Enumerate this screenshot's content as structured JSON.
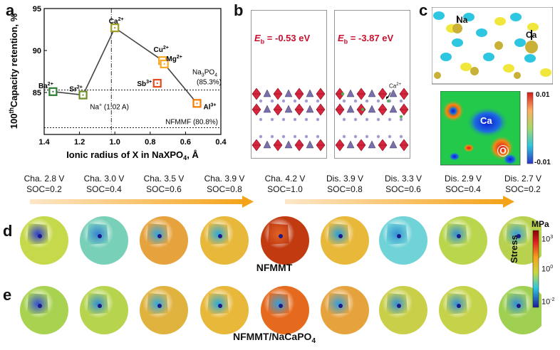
{
  "panels": {
    "a": "a",
    "b": "b",
    "c": "c",
    "d": "d",
    "e": "e"
  },
  "chart_data": {
    "type": "scatter",
    "title": "",
    "xlabel": "Ionic radius of X in NaXPO",
    "xlabel_sub": "4",
    "xlabel_tail": ", Å",
    "ylabel": "Capacity retention, %",
    "ylabel_prefix": "100",
    "ylabel_sup": "th",
    "xlim": [
      1.4,
      0.4
    ],
    "ylim": [
      80,
      95
    ],
    "xticks": [
      1.4,
      1.2,
      1.0,
      0.8,
      0.6,
      0.4
    ],
    "xtick_labels": [
      "1.4",
      "1.2",
      "1.0",
      "0.8",
      "0.6",
      "0.4"
    ],
    "yticks": [
      85,
      90,
      95
    ],
    "ytick_labels": [
      "85",
      "90",
      "95"
    ],
    "series": [
      {
        "name": "connected",
        "points": [
          {
            "ion": "Ba",
            "charge": "2+",
            "x": 1.35,
            "y": 85.1,
            "color": "#2e7d32"
          },
          {
            "ion": "Sr",
            "charge": "2+",
            "x": 1.18,
            "y": 84.7,
            "color": "#6b8e23"
          },
          {
            "ion": "Ca",
            "charge": "2+",
            "x": 1.0,
            "y": 92.7,
            "color": "#9e9d24"
          },
          {
            "ion": "Cu",
            "charge": "2+",
            "x": 0.73,
            "y": 88.8,
            "color": "#f9a825"
          },
          {
            "ion": "Mg",
            "charge": "2+",
            "x": 0.72,
            "y": 88.4,
            "color": "#f9a825"
          },
          {
            "ion": "Al",
            "charge": "3+",
            "x": 0.535,
            "y": 83.7,
            "color": "#f57c00"
          }
        ]
      },
      {
        "name": "isolated",
        "points": [
          {
            "ion": "Sb",
            "charge": "3+",
            "x": 0.76,
            "y": 86.1,
            "color": "#e64a19"
          }
        ]
      }
    ],
    "reference_lines": [
      {
        "label": "Na",
        "label_sup": "+",
        "label_tail": " (1.02 A)",
        "axis": "x",
        "value": 1.02
      },
      {
        "label": "Na",
        "label_sub1": "3",
        "label_mid": "PO",
        "label_sub2": "4",
        "label_line2": "(85.3%)",
        "axis": "y",
        "value": 85.3
      },
      {
        "label": "NFMMF (80.8%)",
        "axis": "y",
        "value": 80.8
      }
    ]
  },
  "panel_b": {
    "left": {
      "label_e": "E",
      "label_sub": "b",
      "label_val": " = -0.53 eV"
    },
    "right": {
      "label_e": "E",
      "label_sub": "b",
      "label_val": " = -3.87 eV",
      "annotation": "Ca",
      "annotation_sup": "2+"
    }
  },
  "panel_c": {
    "top_labels": [
      "Na",
      "Ca"
    ],
    "map_labels": [
      "Ca",
      "O"
    ],
    "colorbar_max": "0.01",
    "colorbar_min": "-0.01"
  },
  "states": [
    {
      "line1": "Cha. 2.8 V",
      "line2": "SOC=0.2"
    },
    {
      "line1": "Cha. 3.0 V",
      "line2": "SOC=0.4"
    },
    {
      "line1": "Cha. 3.5 V",
      "line2": "SOC=0.6"
    },
    {
      "line1": "Cha. 3.9 V",
      "line2": "SOC=0.8"
    },
    {
      "line1": "Cha. 4.2 V",
      "line2": "SOC=1.0"
    },
    {
      "line1": "Dis. 3.9 V",
      "line2": "SOC=0.8"
    },
    {
      "line1": "Dis. 3.3 V",
      "line2": "SOC=0.6"
    },
    {
      "line1": "Dis. 2.9 V",
      "line2": "SOC=0.4"
    },
    {
      "line1": "Dis. 2.7 V",
      "line2": "SOC=0.2"
    }
  ],
  "row_d": {
    "label": "NFMMT",
    "outer_colors": [
      "#c5d94a",
      "#78d0b8",
      "#e6a23c",
      "#e8b83a",
      "#c23a10",
      "#e8b83a",
      "#6fd3d8",
      "#b9d64d",
      "#b8d24f"
    ],
    "inner_colors": [
      "#2233cc",
      "#2a7ed0",
      "#2aa0d8",
      "#23a6d6",
      "#e05a18",
      "#1f9ad6",
      "#2a8fd0",
      "#2a8ad0",
      "#2a9ad8"
    ]
  },
  "row_e": {
    "label": "NFMMT/NaCaPO",
    "label_sub": "4",
    "outer_colors": [
      "#a8d24f",
      "#b6d44d",
      "#e0b23e",
      "#e8b83a",
      "#e66a1e",
      "#e6a23c",
      "#c9cf48",
      "#c5d34a",
      "#9fd052"
    ],
    "inner_colors": [
      "#2a4ad0",
      "#2a8ad0",
      "#2aa4d8",
      "#22a6d6",
      "#2a9ad8",
      "#2a9ad8",
      "#2a8ad0",
      "#2a8ad0",
      "#2a8ad0"
    ]
  },
  "colorbar": {
    "unit": "MPa",
    "title": "Stress",
    "ticks": [
      {
        "base": "10",
        "exp": "3"
      },
      {
        "base": "10",
        "exp": "0"
      },
      {
        "base": "10",
        "exp": "-2"
      }
    ]
  }
}
